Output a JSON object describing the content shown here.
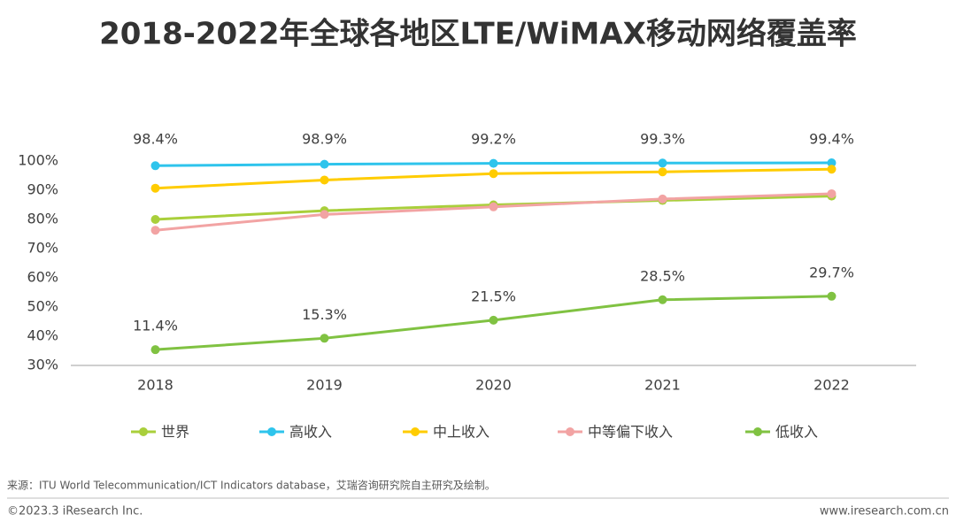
{
  "chart_data": {
    "type": "line",
    "title": "2018-2022年全球各地区LTE/WiMAX移动网络覆盖率",
    "categories": [
      "2018",
      "2019",
      "2020",
      "2021",
      "2022"
    ],
    "ylim": [
      30,
      100
    ],
    "yticks": [
      {
        "value": 30,
        "label": "30%"
      },
      {
        "value": 40,
        "label": "40%"
      },
      {
        "value": 50,
        "label": "50%"
      },
      {
        "value": 60,
        "label": "60%"
      },
      {
        "value": 70,
        "label": "70%"
      },
      {
        "value": 80,
        "label": "80%"
      },
      {
        "value": 90,
        "label": "90%"
      },
      {
        "value": 100,
        "label": "100%"
      }
    ],
    "y2lim": [
      6,
      76
    ],
    "grid": false,
    "legend": "bottom",
    "series": [
      {
        "name": "世界",
        "color": "#a9cf3b",
        "values": [
          80,
          83,
          85,
          86.5,
          88
        ]
      },
      {
        "name": "高收入",
        "color": "#2ec4ec",
        "values": [
          98.4,
          98.9,
          99.2,
          99.3,
          99.4
        ],
        "value_labels": [
          "98.4%",
          "98.9%",
          "99.2%",
          "99.3%",
          "99.4%"
        ]
      },
      {
        "name": "中上收入",
        "color": "#ffcc00",
        "values": [
          90.7,
          93.5,
          95.7,
          96.3,
          97.2
        ]
      },
      {
        "name": "中等偏下收入",
        "color": "#f2a3a3",
        "values": [
          76.3,
          81.7,
          84.3,
          87,
          88.8
        ]
      },
      {
        "name": "低收入",
        "color": "#80c242",
        "axis": "y2",
        "values": [
          11.4,
          15.3,
          21.5,
          28.5,
          29.7
        ],
        "value_labels": [
          "11.4%",
          "15.3%",
          "21.5%",
          "28.5%",
          "29.7%"
        ]
      }
    ],
    "source": "来源：ITU World Telecommunication/ICT Indicators database，艾瑞咨询研究院自主研究及绘制。",
    "copyright": "©2023.3 iResearch Inc.",
    "website": "www.iresearch.com.cn"
  }
}
